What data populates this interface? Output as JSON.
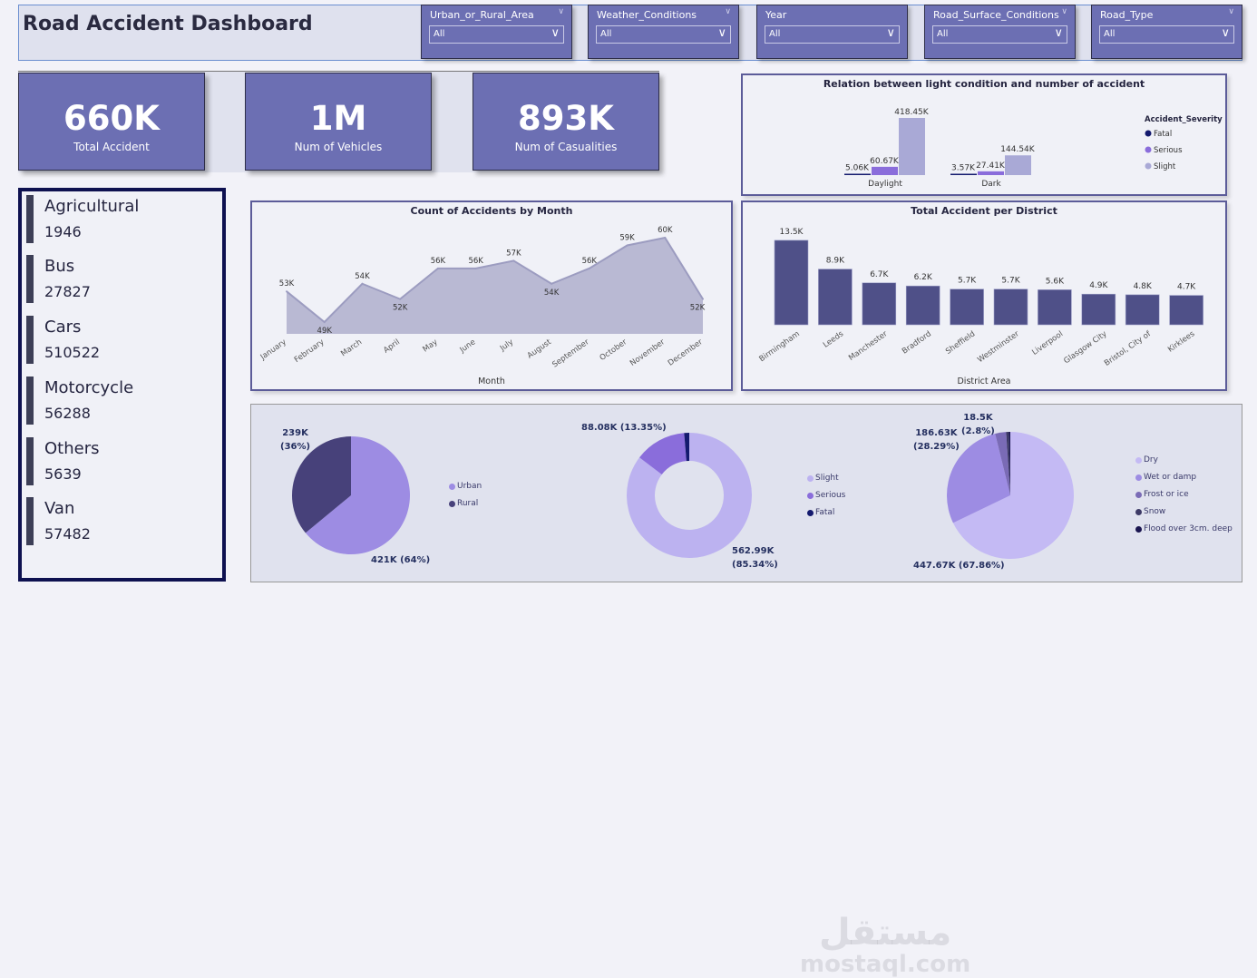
{
  "header": {
    "title": "Road Accident Dashboard"
  },
  "filters": [
    {
      "label": "Urban_or_Rural_Area",
      "value": "All"
    },
    {
      "label": "Weather_Conditions",
      "value": "All"
    },
    {
      "label": "Year",
      "value": "All"
    },
    {
      "label": "Road_Surface_Conditions",
      "value": "All"
    },
    {
      "label": "Road_Type",
      "value": "All"
    }
  ],
  "kpis": [
    {
      "value": "660K",
      "label": "Total Accident"
    },
    {
      "value": "1M",
      "label": "Num of Vehicles"
    },
    {
      "value": "893K",
      "label": "Num of Casualities"
    }
  ],
  "vehicles": [
    {
      "name": "Agricultural",
      "count": "1946"
    },
    {
      "name": "Bus",
      "count": "27827"
    },
    {
      "name": "Cars",
      "count": "510522"
    },
    {
      "name": "Motorcycle",
      "count": "56288"
    },
    {
      "name": "Others",
      "count": "5639"
    },
    {
      "name": "Van",
      "count": "57482"
    }
  ],
  "watermark": {
    "arabic": "مستقل",
    "latin": "mostaql.com"
  },
  "colors": {
    "primary": "#6c6fb3",
    "bar": "#4f5088",
    "area": "#b9b9d3",
    "fatal": "#141a6e",
    "serious": "#8a6ddb",
    "slight": "#a9a9d6"
  },
  "chart_data": [
    {
      "type": "bar",
      "title": "Relation between light condition and number of accident",
      "categories": [
        "Daylight",
        "Dark"
      ],
      "legend_title": "Accident_Severity",
      "legend_position": "right",
      "series": [
        {
          "name": "Fatal",
          "values": [
            5.06,
            3.57
          ],
          "labels": [
            "5.06K",
            "3.57K"
          ]
        },
        {
          "name": "Serious",
          "values": [
            60.67,
            27.41
          ],
          "labels": [
            "60.67K",
            "27.41K"
          ]
        },
        {
          "name": "Slight",
          "values": [
            418.45,
            144.54
          ],
          "labels": [
            "418.45K",
            "144.54K"
          ]
        }
      ]
    },
    {
      "type": "area",
      "title": "Count of Accidents by Month",
      "xlabel": "Month",
      "categories": [
        "January",
        "February",
        "March",
        "April",
        "May",
        "June",
        "July",
        "August",
        "September",
        "October",
        "November",
        "December"
      ],
      "values": [
        53,
        49,
        54,
        52,
        56,
        56,
        57,
        54,
        56,
        59,
        60,
        52
      ],
      "labels": [
        "53K",
        "49K",
        "54K",
        "52K",
        "56K",
        "56K",
        "57K",
        "54K",
        "56K",
        "59K",
        "60K",
        "52K"
      ]
    },
    {
      "type": "bar",
      "title": "Total Accident per District",
      "xlabel": "District Area",
      "categories": [
        "Birmingham",
        "Leeds",
        "Manchester",
        "Bradford",
        "Sheffield",
        "Westminster",
        "Liverpool",
        "Glasgow City",
        "Bristol, City of",
        "Kirklees"
      ],
      "values": [
        13.5,
        8.9,
        6.7,
        6.2,
        5.7,
        5.7,
        5.6,
        4.9,
        4.8,
        4.7
      ],
      "labels": [
        "13.5K",
        "8.9K",
        "6.7K",
        "6.2K",
        "5.7K",
        "5.7K",
        "5.6K",
        "4.9K",
        "4.8K",
        "4.7K"
      ]
    },
    {
      "type": "pie",
      "title": "",
      "legend_position": "right",
      "slices": [
        {
          "name": "Urban",
          "value": 64,
          "color": "#9d8ce3"
        },
        {
          "name": "Rural",
          "value": 36,
          "color": "#47417a"
        }
      ],
      "labels": [
        "421K (64%)",
        "239K",
        "(36%)"
      ]
    },
    {
      "type": "pie",
      "donut": true,
      "title": "",
      "legend_position": "right",
      "slices": [
        {
          "name": "Slight",
          "value": 85.34,
          "color": "#bcb2f0"
        },
        {
          "name": "Serious",
          "value": 13.35,
          "color": "#8a6ddb"
        },
        {
          "name": "Fatal",
          "value": 1.31,
          "color": "#141a6e"
        }
      ],
      "labels": [
        "88.08K (13.35%)",
        "562.99K",
        "(85.34%)"
      ]
    },
    {
      "type": "pie",
      "title": "",
      "legend_position": "right",
      "slices": [
        {
          "name": "Dry",
          "value": 67.86,
          "color": "#c4baf4"
        },
        {
          "name": "Wet or damp",
          "value": 28.29,
          "color": "#9d8ce3"
        },
        {
          "name": "Frost or ice",
          "value": 2.8,
          "color": "#7a6bb6"
        },
        {
          "name": "Snow",
          "value": 0.7,
          "color": "#3d3a66"
        },
        {
          "name": "Flood over 3cm. deep",
          "value": 0.35,
          "color": "#1a1550"
        }
      ],
      "labels": [
        "447.67K (67.86%)",
        "186.63K",
        "(28.29%)",
        "18.5K",
        "(2.8%)"
      ]
    }
  ]
}
